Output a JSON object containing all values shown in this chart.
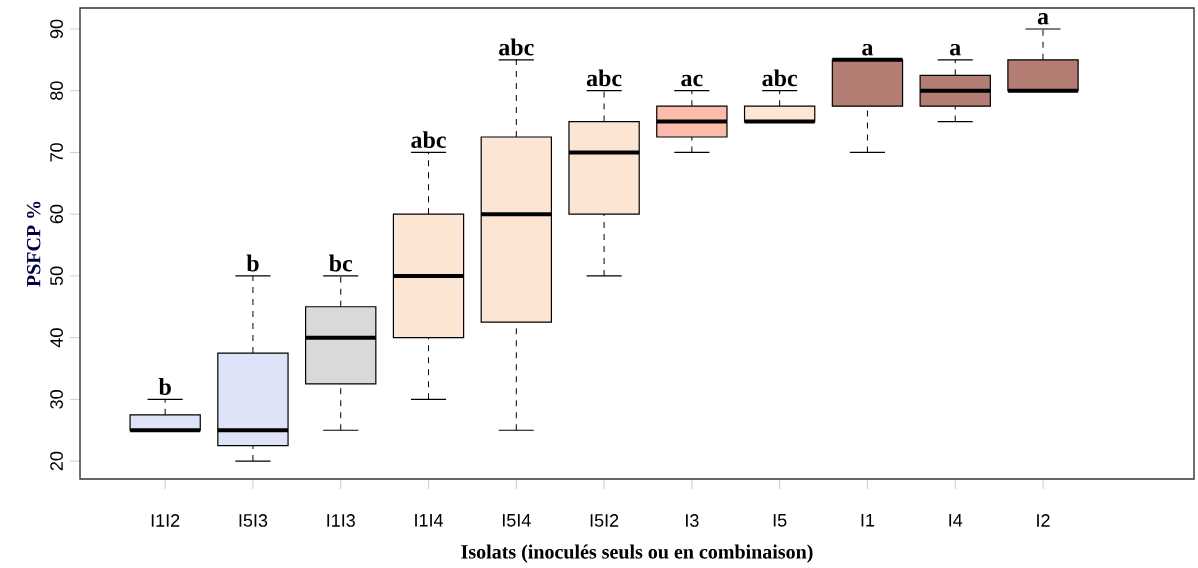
{
  "chart_data": {
    "type": "box",
    "xlabel": "Isolats (inoculés seuls ou en combinaison)",
    "ylabel": "PSFCP %",
    "categories": [
      "I1I2",
      "I5I3",
      "I1I3",
      "I1I4",
      "I5I4",
      "I5I2",
      "I3",
      "I5",
      "I1",
      "I4",
      "I2"
    ],
    "boxes": [
      {
        "low": 25,
        "q1": 25,
        "median": 25,
        "q3": 27.5,
        "high": 30
      },
      {
        "low": 20,
        "q1": 22.5,
        "median": 25,
        "q3": 37.5,
        "high": 50
      },
      {
        "low": 25,
        "q1": 32.5,
        "median": 40,
        "q3": 45,
        "high": 50
      },
      {
        "low": 30,
        "q1": 40,
        "median": 50,
        "q3": 60,
        "high": 70
      },
      {
        "low": 25,
        "q1": 42.5,
        "median": 60,
        "q3": 72.5,
        "high": 85
      },
      {
        "low": 50,
        "q1": 60,
        "median": 70,
        "q3": 75,
        "high": 80
      },
      {
        "low": 70,
        "q1": 72.5,
        "median": 75,
        "q3": 77.5,
        "high": 80
      },
      {
        "low": 75,
        "q1": 75,
        "median": 75,
        "q3": 77.5,
        "high": 80
      },
      {
        "low": 70,
        "q1": 77.5,
        "median": 85,
        "q3": 85,
        "high": 85
      },
      {
        "low": 75,
        "q1": 77.5,
        "median": 80,
        "q3": 82.5,
        "high": 85
      },
      {
        "low": 80,
        "q1": 80,
        "median": 80,
        "q3": 85,
        "high": 90
      }
    ],
    "colors": [
      "#dfe3f7",
      "#dfe3f7",
      "#d9d9d9",
      "#fde5d4",
      "#fde5d4",
      "#fde5d4",
      "#fcbcab",
      "#fde5d4",
      "#b47d74",
      "#b47d74",
      "#b47d74"
    ],
    "ylim": [
      17.1,
      93.4
    ],
    "yticks": [
      20,
      30,
      40,
      50,
      60,
      70,
      80,
      90
    ],
    "grid": false,
    "annotations": [
      "b",
      "b",
      "bc",
      "abc",
      "abc",
      "abc",
      "ac",
      "abc",
      "a",
      "a",
      "a"
    ]
  }
}
